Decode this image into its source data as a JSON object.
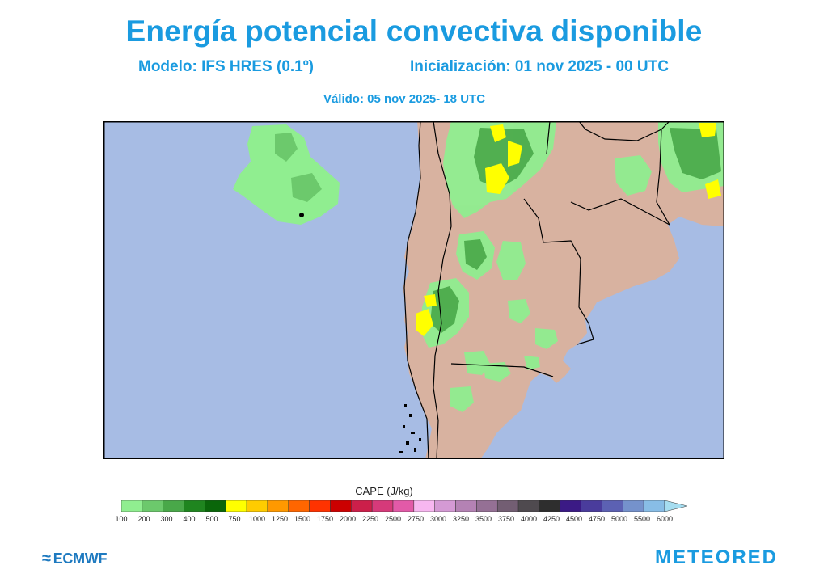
{
  "header": {
    "title": "Energía potencial convectiva disponible",
    "model": "Modelo: IFS HRES (0.1º)",
    "init": "Inicialización: 01 nov 2025 - 00 UTC",
    "valid": "Válido: 05 nov 2025- 18 UTC"
  },
  "colorbar": {
    "title": "CAPE (J/kg)",
    "labels": [
      "100",
      "200",
      "300",
      "400",
      "500",
      "750",
      "1000",
      "1250",
      "1500",
      "1750",
      "2000",
      "2250",
      "2500",
      "2750",
      "3000",
      "3250",
      "3500",
      "3750",
      "4000",
      "4250",
      "4500",
      "4750",
      "5000",
      "5500",
      "6000"
    ],
    "colors": [
      "#90ee90",
      "#6cc96c",
      "#49a849",
      "#1f851f",
      "#0a660a",
      "#ffff00",
      "#ffcc00",
      "#ff9900",
      "#ff6600",
      "#ff3300",
      "#cc0000",
      "#cc1f4a",
      "#d63a7a",
      "#e25aa8",
      "#f7b7f0",
      "#d49ad4",
      "#b482b4",
      "#957095",
      "#735e73",
      "#4f4a4f",
      "#2e2e2e",
      "#3b1a85",
      "#4a3c9c",
      "#5c61b3",
      "#7592cc",
      "#88bde6"
    ],
    "extend_color": "#a6ddf0"
  },
  "map": {
    "ocean_color": "#a7bce4",
    "land_color": "#d8b2a0",
    "cape_color_low": "#90ee90",
    "cape_color_mid": "#49a849",
    "cape_color_high": "#ffff00",
    "border_color": "#000000"
  },
  "logos": {
    "ecmwf": "ECMWF",
    "meteored": "METEORED"
  }
}
